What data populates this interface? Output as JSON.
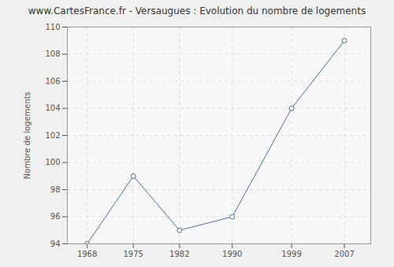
{
  "chart_data": {
    "type": "line",
    "title": "www.CartesFrance.fr - Versaugues : Evolution du nombre de logements",
    "y_label": "Nombre de logements",
    "x": [
      1968,
      1975,
      1982,
      1990,
      1999,
      2007
    ],
    "values": [
      94,
      99,
      95,
      96,
      104,
      109
    ],
    "color": "#4a6f9a",
    "marker": "circle",
    "line_style": "solid",
    "xlim": [
      1965,
      2011
    ],
    "xticks": [
      1968,
      1975,
      1982,
      1990,
      1999,
      2007
    ],
    "ylim": [
      94,
      110
    ],
    "yticks": [
      94,
      96,
      98,
      100,
      102,
      104,
      106,
      108,
      110
    ],
    "grid": true
  }
}
